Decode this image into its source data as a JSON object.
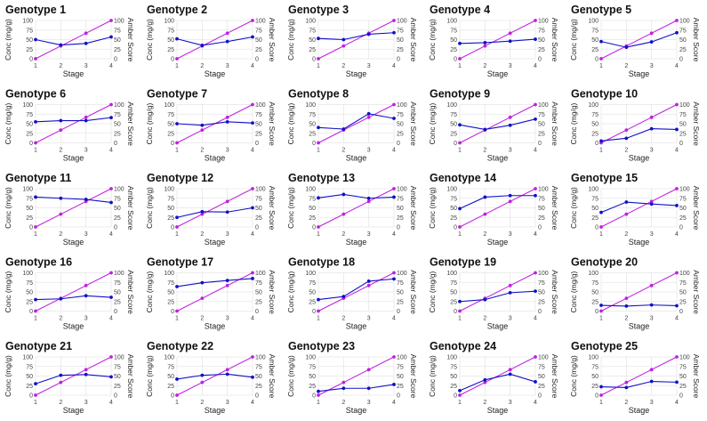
{
  "colors": {
    "conc": "#1010c8",
    "amber": "#c020e0",
    "grid": "#e6e6e6",
    "text": "#222222",
    "tick": "#444444"
  },
  "chart_data": [
    {
      "type": "line",
      "title": "Genotype 1",
      "categories": [
        1,
        2,
        3,
        4
      ],
      "xlabel": "Stage",
      "ylabel": "Conc (mg/g)",
      "y2label": "Amber Score",
      "ylim": [
        0,
        100
      ],
      "y2lim": [
        0,
        100
      ],
      "yticks": [
        0,
        25,
        50,
        75,
        100
      ],
      "series": [
        {
          "name": "Conc (mg/g)",
          "axis": "left",
          "values": [
            50,
            36,
            40,
            57
          ]
        },
        {
          "name": "Amber Score",
          "axis": "right",
          "values": [
            0,
            33.3,
            66.7,
            100
          ]
        }
      ]
    },
    {
      "type": "line",
      "title": "Genotype 2",
      "categories": [
        1,
        2,
        3,
        4
      ],
      "xlabel": "Stage",
      "ylabel": "Conc (mg/g)",
      "y2label": "Amber Score",
      "ylim": [
        0,
        100
      ],
      "y2lim": [
        0,
        100
      ],
      "yticks": [
        0,
        25,
        50,
        75,
        100
      ],
      "series": [
        {
          "name": "Conc (mg/g)",
          "axis": "left",
          "values": [
            52,
            35,
            45,
            57
          ]
        },
        {
          "name": "Amber Score",
          "axis": "right",
          "values": [
            0,
            33.3,
            66.7,
            100
          ]
        }
      ]
    },
    {
      "type": "line",
      "title": "Genotype 3",
      "categories": [
        1,
        2,
        3,
        4
      ],
      "xlabel": "Stage",
      "ylabel": "Conc (mg/g)",
      "y2label": "Amber Score",
      "ylim": [
        0,
        100
      ],
      "y2lim": [
        0,
        100
      ],
      "yticks": [
        0,
        25,
        50,
        75,
        100
      ],
      "series": [
        {
          "name": "Conc (mg/g)",
          "axis": "left",
          "values": [
            53,
            50,
            64,
            68
          ]
        },
        {
          "name": "Amber Score",
          "axis": "right",
          "values": [
            0,
            33.3,
            66.7,
            100
          ]
        }
      ]
    },
    {
      "type": "line",
      "title": "Genotype 4",
      "categories": [
        1,
        2,
        3,
        4
      ],
      "xlabel": "Stage",
      "ylabel": "Conc (mg/g)",
      "y2label": "Amber Score",
      "ylim": [
        0,
        100
      ],
      "y2lim": [
        0,
        100
      ],
      "yticks": [
        0,
        25,
        50,
        75,
        100
      ],
      "series": [
        {
          "name": "Conc (mg/g)",
          "axis": "left",
          "values": [
            40,
            42,
            46,
            51
          ]
        },
        {
          "name": "Amber Score",
          "axis": "right",
          "values": [
            0,
            33.3,
            66.7,
            100
          ]
        }
      ]
    },
    {
      "type": "line",
      "title": "Genotype 5",
      "categories": [
        1,
        2,
        3,
        4
      ],
      "xlabel": "Stage",
      "ylabel": "Conc (mg/g)",
      "y2label": "Amber Score",
      "ylim": [
        0,
        100
      ],
      "y2lim": [
        0,
        100
      ],
      "yticks": [
        0,
        25,
        50,
        75,
        100
      ],
      "series": [
        {
          "name": "Conc (mg/g)",
          "axis": "left",
          "values": [
            45,
            30,
            44,
            68
          ]
        },
        {
          "name": "Amber Score",
          "axis": "right",
          "values": [
            0,
            33.3,
            66.7,
            100
          ]
        }
      ]
    },
    {
      "type": "line",
      "title": "Genotype 6",
      "categories": [
        1,
        2,
        3,
        4
      ],
      "xlabel": "Stage",
      "ylabel": "Conc (mg/g)",
      "y2label": "Amber Score",
      "ylim": [
        0,
        100
      ],
      "y2lim": [
        0,
        100
      ],
      "yticks": [
        0,
        25,
        50,
        75,
        100
      ],
      "series": [
        {
          "name": "Conc (mg/g)",
          "axis": "left",
          "values": [
            55,
            58,
            58,
            66
          ]
        },
        {
          "name": "Amber Score",
          "axis": "right",
          "values": [
            0,
            33.3,
            66.7,
            100
          ]
        }
      ]
    },
    {
      "type": "line",
      "title": "Genotype 7",
      "categories": [
        1,
        2,
        3,
        4
      ],
      "xlabel": "Stage",
      "ylabel": "Conc (mg/g)",
      "y2label": "Amber Score",
      "ylim": [
        0,
        100
      ],
      "y2lim": [
        0,
        100
      ],
      "yticks": [
        0,
        25,
        50,
        75,
        100
      ],
      "series": [
        {
          "name": "Conc (mg/g)",
          "axis": "left",
          "values": [
            50,
            46,
            55,
            52
          ]
        },
        {
          "name": "Amber Score",
          "axis": "right",
          "values": [
            0,
            33.3,
            66.7,
            100
          ]
        }
      ]
    },
    {
      "type": "line",
      "title": "Genotype 8",
      "categories": [
        1,
        2,
        3,
        4
      ],
      "xlabel": "Stage",
      "ylabel": "Conc (mg/g)",
      "y2label": "Amber Score",
      "ylim": [
        0,
        100
      ],
      "y2lim": [
        0,
        100
      ],
      "yticks": [
        0,
        25,
        50,
        75,
        100
      ],
      "series": [
        {
          "name": "Conc (mg/g)",
          "axis": "left",
          "values": [
            40,
            36,
            76,
            64
          ]
        },
        {
          "name": "Amber Score",
          "axis": "right",
          "values": [
            0,
            33.3,
            66.7,
            100
          ]
        }
      ]
    },
    {
      "type": "line",
      "title": "Genotype 9",
      "categories": [
        1,
        2,
        3,
        4
      ],
      "xlabel": "Stage",
      "ylabel": "Conc (mg/g)",
      "y2label": "Amber Score",
      "ylim": [
        0,
        100
      ],
      "y2lim": [
        0,
        100
      ],
      "yticks": [
        0,
        25,
        50,
        75,
        100
      ],
      "series": [
        {
          "name": "Conc (mg/g)",
          "axis": "left",
          "values": [
            47,
            35,
            46,
            62
          ]
        },
        {
          "name": "Amber Score",
          "axis": "right",
          "values": [
            0,
            33.3,
            66.7,
            100
          ]
        }
      ]
    },
    {
      "type": "line",
      "title": "Genotype 10",
      "categories": [
        1,
        2,
        3,
        4
      ],
      "xlabel": "Stage",
      "ylabel": "Conc (mg/g)",
      "y2label": "Amber Score",
      "ylim": [
        0,
        100
      ],
      "y2lim": [
        0,
        100
      ],
      "yticks": [
        0,
        25,
        50,
        75,
        100
      ],
      "series": [
        {
          "name": "Conc (mg/g)",
          "axis": "left",
          "values": [
            5,
            12,
            37,
            35
          ]
        },
        {
          "name": "Amber Score",
          "axis": "right",
          "values": [
            0,
            33.3,
            66.7,
            100
          ]
        }
      ]
    },
    {
      "type": "line",
      "title": "Genotype 11",
      "categories": [
        1,
        2,
        3,
        4
      ],
      "xlabel": "Stage",
      "ylabel": "Conc (mg/g)",
      "y2label": "Amber Score",
      "ylim": [
        0,
        100
      ],
      "y2lim": [
        0,
        100
      ],
      "yticks": [
        0,
        25,
        50,
        75,
        100
      ],
      "series": [
        {
          "name": "Conc (mg/g)",
          "axis": "left",
          "values": [
            78,
            75,
            72,
            64
          ]
        },
        {
          "name": "Amber Score",
          "axis": "right",
          "values": [
            0,
            33.3,
            66.7,
            100
          ]
        }
      ]
    },
    {
      "type": "line",
      "title": "Genotype 12",
      "categories": [
        1,
        2,
        3,
        4
      ],
      "xlabel": "Stage",
      "ylabel": "Conc (mg/g)",
      "y2label": "Amber Score",
      "ylim": [
        0,
        100
      ],
      "y2lim": [
        0,
        100
      ],
      "yticks": [
        0,
        25,
        50,
        75,
        100
      ],
      "series": [
        {
          "name": "Conc (mg/g)",
          "axis": "left",
          "values": [
            25,
            40,
            39,
            50
          ]
        },
        {
          "name": "Amber Score",
          "axis": "right",
          "values": [
            0,
            33.3,
            66.7,
            100
          ]
        }
      ]
    },
    {
      "type": "line",
      "title": "Genotype 13",
      "categories": [
        1,
        2,
        3,
        4
      ],
      "xlabel": "Stage",
      "ylabel": "Conc (mg/g)",
      "y2label": "Amber Score",
      "ylim": [
        0,
        100
      ],
      "y2lim": [
        0,
        100
      ],
      "yticks": [
        0,
        25,
        50,
        75,
        100
      ],
      "series": [
        {
          "name": "Conc (mg/g)",
          "axis": "left",
          "values": [
            76,
            85,
            75,
            78
          ]
        },
        {
          "name": "Amber Score",
          "axis": "right",
          "values": [
            0,
            33.3,
            66.7,
            100
          ]
        }
      ]
    },
    {
      "type": "line",
      "title": "Genotype 14",
      "categories": [
        1,
        2,
        3,
        4
      ],
      "xlabel": "Stage",
      "ylabel": "Conc (mg/g)",
      "y2label": "Amber Score",
      "ylim": [
        0,
        100
      ],
      "y2lim": [
        0,
        100
      ],
      "yticks": [
        0,
        25,
        50,
        75,
        100
      ],
      "series": [
        {
          "name": "Conc (mg/g)",
          "axis": "left",
          "values": [
            48,
            78,
            82,
            82
          ]
        },
        {
          "name": "Amber Score",
          "axis": "right",
          "values": [
            0,
            33.3,
            66.7,
            100
          ]
        }
      ]
    },
    {
      "type": "line",
      "title": "Genotype 15",
      "categories": [
        1,
        2,
        3,
        4
      ],
      "xlabel": "Stage",
      "ylabel": "Conc (mg/g)",
      "y2label": "Amber Score",
      "ylim": [
        0,
        100
      ],
      "y2lim": [
        0,
        100
      ],
      "yticks": [
        0,
        25,
        50,
        75,
        100
      ],
      "series": [
        {
          "name": "Conc (mg/g)",
          "axis": "left",
          "values": [
            38,
            65,
            60,
            56
          ]
        },
        {
          "name": "Amber Score",
          "axis": "right",
          "values": [
            0,
            33.3,
            66.7,
            100
          ]
        }
      ]
    },
    {
      "type": "line",
      "title": "Genotype 16",
      "categories": [
        1,
        2,
        3,
        4
      ],
      "xlabel": "Stage",
      "ylabel": "Conc (mg/g)",
      "y2label": "Amber Score",
      "ylim": [
        0,
        100
      ],
      "y2lim": [
        0,
        100
      ],
      "yticks": [
        0,
        25,
        50,
        75,
        100
      ],
      "series": [
        {
          "name": "Conc (mg/g)",
          "axis": "left",
          "values": [
            30,
            32,
            40,
            36
          ]
        },
        {
          "name": "Amber Score",
          "axis": "right",
          "values": [
            0,
            33.3,
            66.7,
            100
          ]
        }
      ]
    },
    {
      "type": "line",
      "title": "Genotype 17",
      "categories": [
        1,
        2,
        3,
        4
      ],
      "xlabel": "Stage",
      "ylabel": "Conc (mg/g)",
      "y2label": "Amber Score",
      "ylim": [
        0,
        100
      ],
      "y2lim": [
        0,
        100
      ],
      "yticks": [
        0,
        25,
        50,
        75,
        100
      ],
      "series": [
        {
          "name": "Conc (mg/g)",
          "axis": "left",
          "values": [
            64,
            74,
            80,
            85
          ]
        },
        {
          "name": "Amber Score",
          "axis": "right",
          "values": [
            0,
            33.3,
            66.7,
            100
          ]
        }
      ]
    },
    {
      "type": "line",
      "title": "Genotype 18",
      "categories": [
        1,
        2,
        3,
        4
      ],
      "xlabel": "Stage",
      "ylabel": "Conc (mg/g)",
      "y2label": "Amber Score",
      "ylim": [
        0,
        100
      ],
      "y2lim": [
        0,
        100
      ],
      "yticks": [
        0,
        25,
        50,
        75,
        100
      ],
      "series": [
        {
          "name": "Conc (mg/g)",
          "axis": "left",
          "values": [
            30,
            38,
            78,
            84
          ]
        },
        {
          "name": "Amber Score",
          "axis": "right",
          "values": [
            0,
            33.3,
            66.7,
            100
          ]
        }
      ]
    },
    {
      "type": "line",
      "title": "Genotype 19",
      "categories": [
        1,
        2,
        3,
        4
      ],
      "xlabel": "Stage",
      "ylabel": "Conc (mg/g)",
      "y2label": "Amber Score",
      "ylim": [
        0,
        100
      ],
      "y2lim": [
        0,
        100
      ],
      "yticks": [
        0,
        25,
        50,
        75,
        100
      ],
      "series": [
        {
          "name": "Conc (mg/g)",
          "axis": "left",
          "values": [
            25,
            30,
            48,
            52
          ]
        },
        {
          "name": "Amber Score",
          "axis": "right",
          "values": [
            0,
            33.3,
            66.7,
            100
          ]
        }
      ]
    },
    {
      "type": "line",
      "title": "Genotype 20",
      "categories": [
        1,
        2,
        3,
        4
      ],
      "xlabel": "Stage",
      "ylabel": "Conc (mg/g)",
      "y2label": "Amber Score",
      "ylim": [
        0,
        100
      ],
      "y2lim": [
        0,
        100
      ],
      "yticks": [
        0,
        25,
        50,
        75,
        100
      ],
      "series": [
        {
          "name": "Conc (mg/g)",
          "axis": "left",
          "values": [
            15,
            13,
            16,
            14
          ]
        },
        {
          "name": "Amber Score",
          "axis": "right",
          "values": [
            0,
            33.3,
            66.7,
            100
          ]
        }
      ]
    },
    {
      "type": "line",
      "title": "Genotype 21",
      "categories": [
        1,
        2,
        3,
        4
      ],
      "xlabel": "Stage",
      "ylabel": "Conc (mg/g)",
      "y2label": "Amber Score",
      "ylim": [
        0,
        100
      ],
      "y2lim": [
        0,
        100
      ],
      "yticks": [
        0,
        25,
        50,
        75,
        100
      ],
      "series": [
        {
          "name": "Conc (mg/g)",
          "axis": "left",
          "values": [
            30,
            52,
            54,
            48
          ]
        },
        {
          "name": "Amber Score",
          "axis": "right",
          "values": [
            0,
            33.3,
            66.7,
            100
          ]
        }
      ]
    },
    {
      "type": "line",
      "title": "Genotype 22",
      "categories": [
        1,
        2,
        3,
        4
      ],
      "xlabel": "Stage",
      "ylabel": "Conc (mg/g)",
      "y2label": "Amber Score",
      "ylim": [
        0,
        100
      ],
      "y2lim": [
        0,
        100
      ],
      "yticks": [
        0,
        25,
        50,
        75,
        100
      ],
      "series": [
        {
          "name": "Conc (mg/g)",
          "axis": "left",
          "values": [
            42,
            52,
            55,
            47
          ]
        },
        {
          "name": "Amber Score",
          "axis": "right",
          "values": [
            0,
            33.3,
            66.7,
            100
          ]
        }
      ]
    },
    {
      "type": "line",
      "title": "Genotype 23",
      "categories": [
        1,
        2,
        3,
        4
      ],
      "xlabel": "Stage",
      "ylabel": "Conc (mg/g)",
      "y2label": "Amber Score",
      "ylim": [
        0,
        100
      ],
      "y2lim": [
        0,
        100
      ],
      "yticks": [
        0,
        25,
        50,
        75,
        100
      ],
      "series": [
        {
          "name": "Conc (mg/g)",
          "axis": "left",
          "values": [
            10,
            18,
            18,
            28
          ]
        },
        {
          "name": "Amber Score",
          "axis": "right",
          "values": [
            0,
            33.3,
            66.7,
            100
          ]
        }
      ]
    },
    {
      "type": "line",
      "title": "Genotype 24",
      "categories": [
        1,
        2,
        3,
        4
      ],
      "xlabel": "Stage",
      "ylabel": "Conc (mg/g)",
      "y2label": "Amber Score",
      "ylim": [
        0,
        100
      ],
      "y2lim": [
        0,
        100
      ],
      "yticks": [
        0,
        25,
        50,
        75,
        100
      ],
      "series": [
        {
          "name": "Conc (mg/g)",
          "axis": "left",
          "values": [
            12,
            40,
            55,
            35
          ]
        },
        {
          "name": "Amber Score",
          "axis": "right",
          "values": [
            0,
            33.3,
            66.7,
            100
          ]
        }
      ]
    },
    {
      "type": "line",
      "title": "Genotype 25",
      "categories": [
        1,
        2,
        3,
        4
      ],
      "xlabel": "Stage",
      "ylabel": "Conc (mg/g)",
      "y2label": "Amber Score",
      "ylim": [
        0,
        100
      ],
      "y2lim": [
        0,
        100
      ],
      "yticks": [
        0,
        25,
        50,
        75,
        100
      ],
      "series": [
        {
          "name": "Conc (mg/g)",
          "axis": "left",
          "values": [
            22,
            20,
            36,
            34
          ]
        },
        {
          "name": "Amber Score",
          "axis": "right",
          "values": [
            0,
            33.3,
            66.7,
            100
          ]
        }
      ]
    }
  ]
}
